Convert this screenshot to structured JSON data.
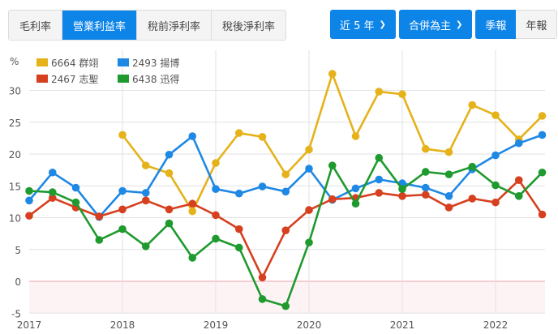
{
  "metric_tabs": [
    {
      "label": "毛利率",
      "active": false
    },
    {
      "label": "營業利益率",
      "active": true
    },
    {
      "label": "稅前淨利率",
      "active": false
    },
    {
      "label": "稅後淨利率",
      "active": false
    }
  ],
  "controls": {
    "period_label": "近 5 年",
    "consolidation_label": "合併為主",
    "quarterly_label": "季報",
    "annual_label": "年報"
  },
  "colors": {
    "accent": "#0d84e8",
    "zero_line": "#e8a0a8",
    "negative_fill": "#fdf3f5",
    "grid": "#e2e2e2"
  },
  "chart_data": {
    "type": "line",
    "title": "",
    "xlabel": "",
    "ylabel": "%",
    "ylim": [
      -5,
      33
    ],
    "yticks": [
      -5,
      0,
      5,
      10,
      15,
      20,
      25,
      30
    ],
    "xtick_labels": [
      "2017",
      "2018",
      "2019",
      "2020",
      "2021",
      "2022"
    ],
    "grid": true,
    "legend_position": "top-left",
    "x": [
      "2017Q1",
      "2017Q2",
      "2017Q3",
      "2017Q4",
      "2018Q1",
      "2018Q2",
      "2018Q3",
      "2018Q4",
      "2019Q1",
      "2019Q2",
      "2019Q3",
      "2019Q4",
      "2020Q1",
      "2020Q2",
      "2020Q3",
      "2020Q4",
      "2021Q1",
      "2021Q2",
      "2021Q3",
      "2021Q4",
      "2022Q1",
      "2022Q2",
      "2022Q3"
    ],
    "series": [
      {
        "name": "6664 群翊",
        "color": "#e5b21a",
        "values": [
          null,
          null,
          null,
          null,
          23.0,
          18.2,
          17.0,
          11.0,
          18.6,
          23.3,
          22.7,
          16.8,
          20.7,
          32.6,
          22.8,
          29.8,
          29.4,
          20.8,
          20.3,
          27.7,
          26.1,
          22.3,
          26.0
        ]
      },
      {
        "name": "2493 揚博",
        "color": "#1e88e5",
        "values": [
          12.7,
          17.1,
          14.7,
          10.1,
          14.2,
          13.9,
          19.9,
          22.8,
          14.5,
          13.8,
          14.9,
          14.1,
          17.7,
          12.8,
          14.6,
          16.0,
          15.4,
          14.7,
          13.4,
          17.6,
          19.8,
          21.7,
          23.0
        ]
      },
      {
        "name": "2467 志聖",
        "color": "#d6401f",
        "values": [
          10.3,
          13.1,
          11.6,
          10.2,
          11.3,
          12.7,
          11.3,
          12.2,
          10.4,
          8.2,
          0.6,
          8.0,
          11.2,
          12.9,
          13.1,
          13.9,
          13.4,
          13.6,
          11.6,
          13.0,
          12.4,
          15.9,
          10.5
        ]
      },
      {
        "name": "6438 迅得",
        "color": "#1f9a2e",
        "values": [
          14.2,
          14.0,
          12.4,
          6.5,
          8.2,
          5.5,
          9.1,
          3.7,
          6.7,
          5.3,
          -2.8,
          -3.9,
          6.1,
          18.2,
          12.2,
          19.4,
          14.5,
          17.2,
          16.8,
          18.0,
          15.1,
          13.4,
          17.1
        ]
      }
    ]
  }
}
